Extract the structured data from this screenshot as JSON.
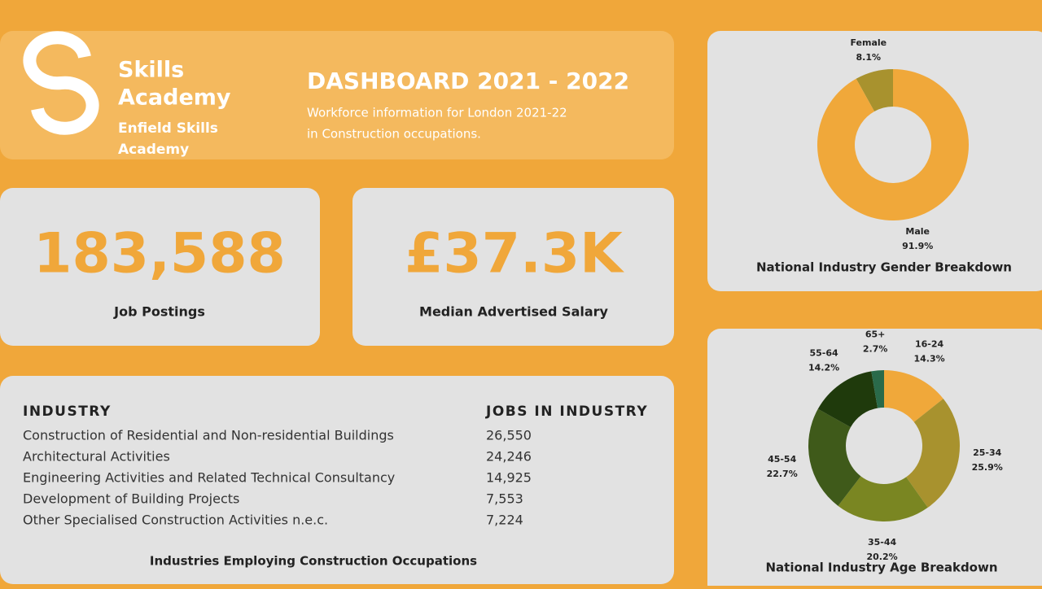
{
  "header": {
    "brand": [
      "Skills",
      "Academy"
    ],
    "org": [
      "Enfield Skills",
      "Academy"
    ],
    "title": "DASHBOARD 2021 - 2022",
    "subtitle": [
      "Workforce information for London 2021-22",
      "in Construction occupations."
    ]
  },
  "kpis": [
    {
      "value": "183,588",
      "label": "Job Postings"
    },
    {
      "value": "£37.3K",
      "label": "Median Advertised Salary"
    }
  ],
  "table": {
    "headers": [
      "INDUSTRY",
      "JOBS IN INDUSTRY"
    ],
    "rows": [
      [
        "Construction of Residential and Non-residential Buildings",
        "26,550"
      ],
      [
        "Architectural Activities",
        "24,246"
      ],
      [
        "Engineering Activities and Related Technical Consultancy",
        "14,925"
      ],
      [
        "Development of Building Projects",
        "7,553"
      ],
      [
        "Other Specialised Construction Activities n.e.c.",
        "7,224"
      ]
    ],
    "caption": "Industries Employing Construction Occupations"
  },
  "chart_data": [
    {
      "type": "donut",
      "title": "National Industry Gender Breakdown",
      "categories": [
        "Female",
        "Male"
      ],
      "values": [
        8.1,
        91.9
      ],
      "value_labels": [
        "8.1%",
        "91.9%"
      ],
      "colors": [
        "#a8922e",
        "#f0a83a"
      ]
    },
    {
      "type": "donut",
      "title": "National Industry Age Breakdown",
      "categories": [
        "16-24",
        "25-34",
        "35-44",
        "45-54",
        "55-64",
        "65+"
      ],
      "values": [
        14.3,
        25.9,
        20.2,
        22.7,
        14.2,
        2.7
      ],
      "value_labels": [
        "14.3%",
        "25.9%",
        "20.2%",
        "22.7%",
        "14.2%",
        "2.7%"
      ],
      "colors": [
        "#f0a83a",
        "#a8922e",
        "#7a8622",
        "#3f5a1a",
        "#1f3a0c",
        "#2a6a4a"
      ]
    }
  ]
}
